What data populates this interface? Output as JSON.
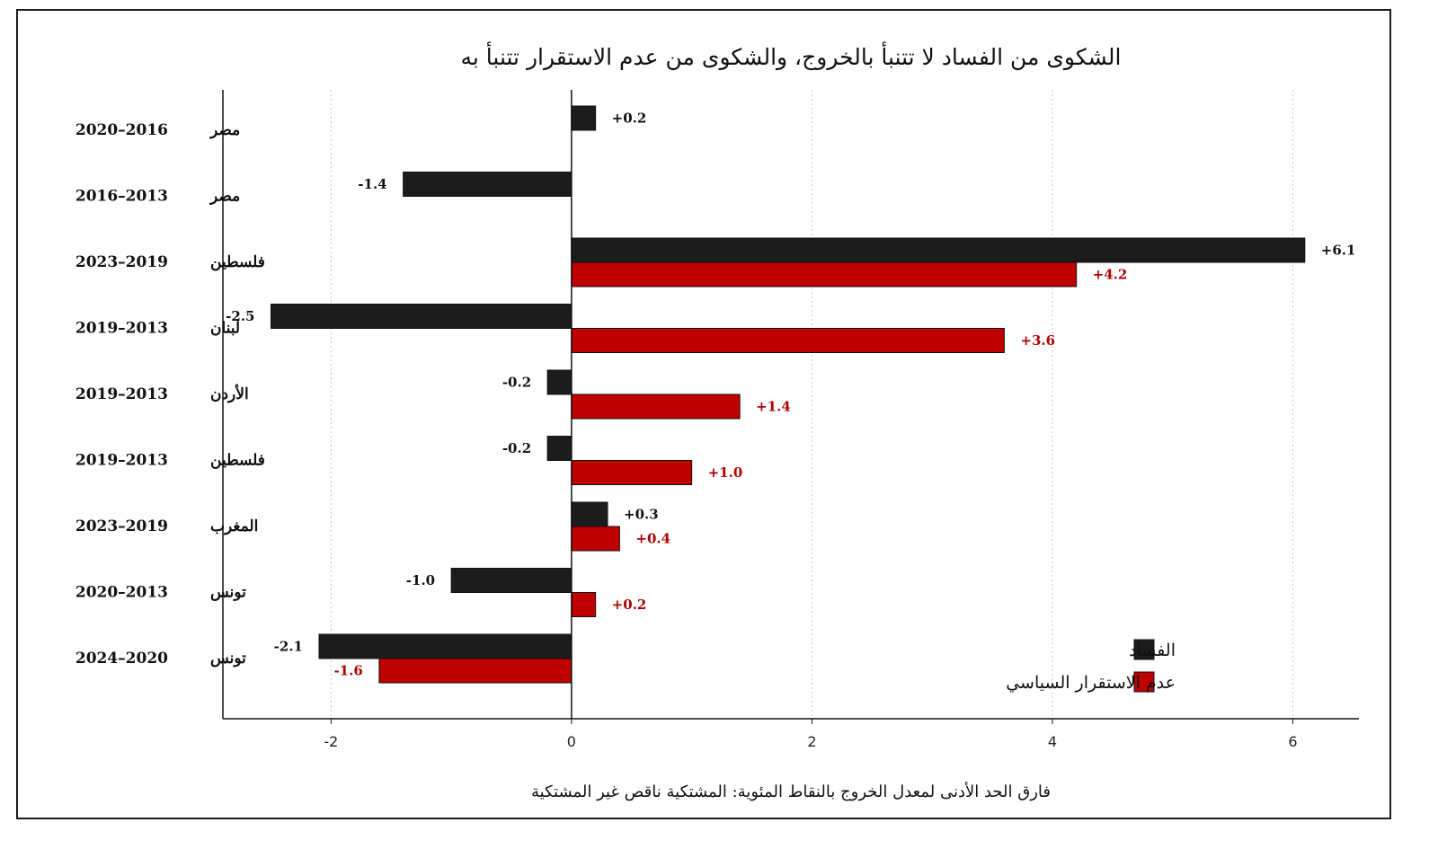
{
  "chart_data": {
    "type": "bar",
    "orientation": "horizontal",
    "title": "الشكوى من الفساد لا تتنبأ بالخروج، والشكوى من عدم الاستقرار تتنبأ به",
    "xlabel": "فارق الحد الأدنى لمعدل الخروج بالنقاط المئوية: المشتكية ناقص غير المشتكية",
    "ylabel": "",
    "xlim": [
      -2.9,
      6.55
    ],
    "xticks": [
      -2,
      0,
      2,
      4,
      6
    ],
    "grid": "vertical-dotted",
    "legend_position": "bottom-right",
    "categories": [
      {
        "country": "مصر",
        "years": "2020–2016"
      },
      {
        "country": "مصر",
        "years": "2016–2013"
      },
      {
        "country": "فلسطين",
        "years": "2023–2019"
      },
      {
        "country": "لبنان",
        "years": "2019–2013"
      },
      {
        "country": "الأردن",
        "years": "2019–2013"
      },
      {
        "country": "فلسطين",
        "years": "2019–2013"
      },
      {
        "country": "المغرب",
        "years": "2023–2019"
      },
      {
        "country": "تونس",
        "years": "2020–2013"
      },
      {
        "country": "تونس",
        "years": "2024–2020"
      }
    ],
    "series": [
      {
        "name": "الفساد",
        "color": "#1c1c1c",
        "values": [
          0.2,
          -1.4,
          6.1,
          -2.5,
          -0.2,
          -0.2,
          0.3,
          -1.0,
          -2.1
        ],
        "labels": [
          "+0.2",
          "-1.4",
          "+6.1",
          "-2.5",
          "-0.2",
          "-0.2",
          "+0.3",
          "-1.0",
          "-2.1"
        ]
      },
      {
        "name": "عدم الاستقرار السياسي",
        "color": "#c00000",
        "values": [
          null,
          null,
          4.2,
          3.6,
          1.4,
          1.0,
          0.4,
          0.2,
          -1.6
        ],
        "labels": [
          null,
          null,
          "+4.2",
          "+3.6",
          "+1.4",
          "+1.0",
          "+0.4",
          "+0.2",
          "-1.6"
        ]
      }
    ]
  }
}
